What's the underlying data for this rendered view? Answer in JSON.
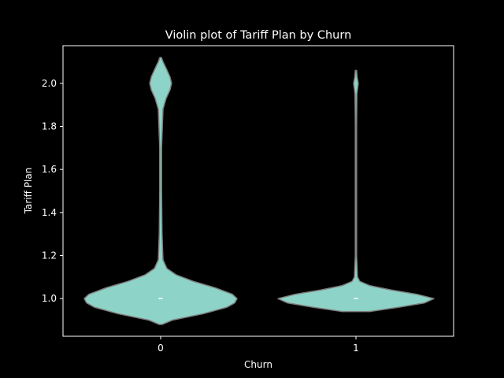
{
  "chart_data": {
    "type": "violin",
    "title": "Violin plot of Tariff Plan by Churn",
    "xlabel": "Churn",
    "ylabel": "Tariff Plan",
    "categories": [
      "0",
      "1"
    ],
    "ylim": [
      0.825,
      2.175
    ],
    "yticks": [
      "1.0",
      "1.2",
      "1.4",
      "1.6",
      "1.8",
      "2.0"
    ],
    "grid": false,
    "colors": {
      "background": "#000000",
      "violin_fill": "#8dd3c7",
      "violin_edge": "#7f7f7f",
      "axes": "#ffffff",
      "median_mark": "#ffffff"
    },
    "violins": [
      {
        "category": "0",
        "median": 1.0,
        "q1": 1.0,
        "q3": 1.0,
        "range": [
          0.88,
          2.12
        ],
        "density_profile": [
          [
            0.88,
            0.02
          ],
          [
            0.9,
            0.15
          ],
          [
            0.93,
            0.55
          ],
          [
            0.96,
            0.85
          ],
          [
            0.98,
            0.95
          ],
          [
            1.0,
            0.98
          ],
          [
            1.02,
            0.92
          ],
          [
            1.05,
            0.7
          ],
          [
            1.08,
            0.42
          ],
          [
            1.11,
            0.2
          ],
          [
            1.14,
            0.08
          ],
          [
            1.18,
            0.03
          ],
          [
            1.3,
            0.018
          ],
          [
            1.5,
            0.012
          ],
          [
            1.7,
            0.012
          ],
          [
            1.88,
            0.03
          ],
          [
            1.93,
            0.07
          ],
          [
            1.97,
            0.12
          ],
          [
            2.0,
            0.14
          ],
          [
            2.03,
            0.12
          ],
          [
            2.07,
            0.07
          ],
          [
            2.1,
            0.03
          ],
          [
            2.12,
            0.01
          ]
        ]
      },
      {
        "category": "1",
        "median": 1.0,
        "q1": 1.0,
        "q3": 1.0,
        "range": [
          0.94,
          2.06
        ],
        "density_profile": [
          [
            0.94,
            0.18
          ],
          [
            0.96,
            0.55
          ],
          [
            0.98,
            0.88
          ],
          [
            1.0,
            1.0
          ],
          [
            1.02,
            0.78
          ],
          [
            1.04,
            0.45
          ],
          [
            1.06,
            0.18
          ],
          [
            1.08,
            0.05
          ],
          [
            1.1,
            0.02
          ],
          [
            1.2,
            0.008
          ],
          [
            1.5,
            0.006
          ],
          [
            1.8,
            0.006
          ],
          [
            1.95,
            0.012
          ],
          [
            2.0,
            0.03
          ],
          [
            2.03,
            0.015
          ],
          [
            2.06,
            0.004
          ]
        ]
      }
    ]
  }
}
